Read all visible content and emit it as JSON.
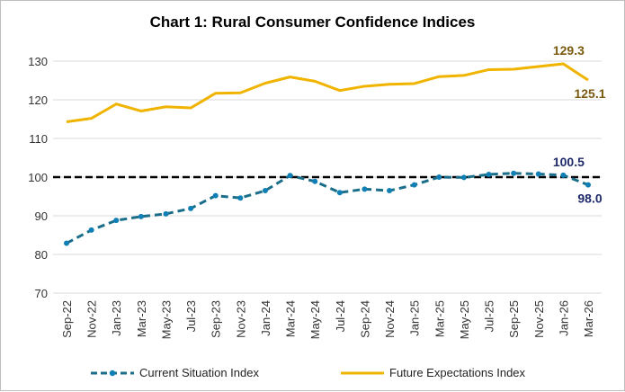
{
  "chart_data": {
    "type": "line",
    "title": "Chart 1: Rural Consumer Confidence Indices",
    "xlabel": "",
    "ylabel": "",
    "ylim": [
      70,
      130
    ],
    "yticks": [
      70,
      80,
      90,
      100,
      110,
      120,
      130
    ],
    "grid": true,
    "legend": "bottom",
    "categories": [
      "Sep-22",
      "Nov-22",
      "Jan-23",
      "Mar-23",
      "May-23",
      "Jul-23",
      "Sep-23",
      "Nov-23",
      "Jan-24",
      "Mar-24",
      "May-24",
      "Jul-24",
      "Sep-24",
      "Nov-24",
      "Jan-25",
      "Mar-25",
      "May-25",
      "Jul-25",
      "Sep-25",
      "Nov-25",
      "Jan-26",
      "Mar-26"
    ],
    "reference_line": 100,
    "series": [
      {
        "name": "Current Situation Index",
        "color": "#1a6e8a",
        "marker_color": "#0f7fb5",
        "style": "dashed",
        "values": [
          82.9,
          86.3,
          88.8,
          89.8,
          90.5,
          91.9,
          95.2,
          94.6,
          96.5,
          100.4,
          98.9,
          96.0,
          96.9,
          96.5,
          98.0,
          100.0,
          99.9,
          100.7,
          101.0,
          100.8,
          100.5,
          98.0
        ],
        "labels": [
          "100.5",
          "98.0"
        ],
        "label_color": "#1f2a6b"
      },
      {
        "name": "Future Expectations Index",
        "color": "#f0b400",
        "style": "solid",
        "values": [
          114.3,
          115.2,
          118.9,
          117.1,
          118.2,
          117.9,
          121.7,
          121.8,
          124.3,
          125.9,
          124.8,
          122.4,
          123.5,
          124.0,
          124.2,
          126.0,
          126.3,
          127.8,
          127.9,
          128.6,
          129.3,
          125.1
        ],
        "labels": [
          "129.3",
          "125.1"
        ],
        "label_color": "#7a5a10"
      }
    ]
  }
}
